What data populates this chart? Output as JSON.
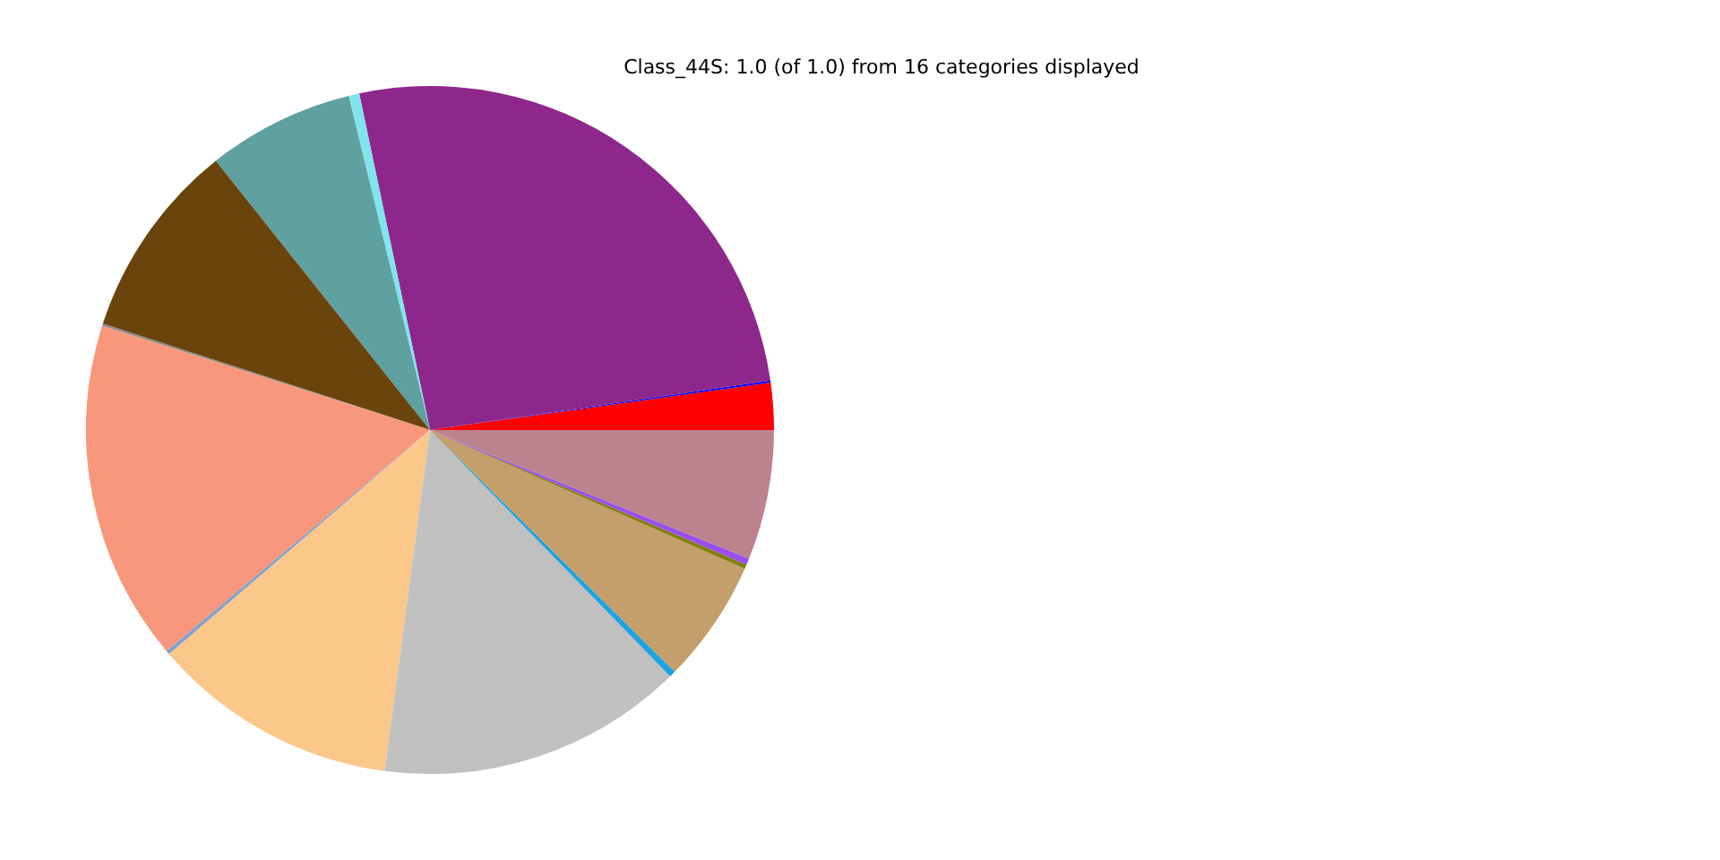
{
  "chart_data": {
    "type": "pie",
    "title": "Class_44S: 1.0 (of 1.0) from 16 categories displayed",
    "categories": [
      null,
      null,
      null,
      null,
      null,
      null,
      null,
      null,
      null,
      null,
      null,
      null,
      null,
      null,
      null,
      null
    ],
    "values": [
      2.2,
      0.1,
      26.0,
      0.5,
      6.9,
      9.3,
      0.1,
      16.0,
      0.2,
      11.6,
      14.4,
      0.3,
      5.8,
      0.2,
      0.3,
      6.1
    ],
    "colors": [
      "#ff0000",
      "#0000ff",
      "#8e278c",
      "#7fe6ee",
      "#5fa1a0",
      "#6b440b",
      "#8a8a8a",
      "#f8977b",
      "#87a2c8",
      "#fcc78b",
      "#c0c0c0",
      "#1ba3e2",
      "#c49e6b",
      "#808000",
      "#9a4ef0",
      "#bc838e"
    ]
  }
}
